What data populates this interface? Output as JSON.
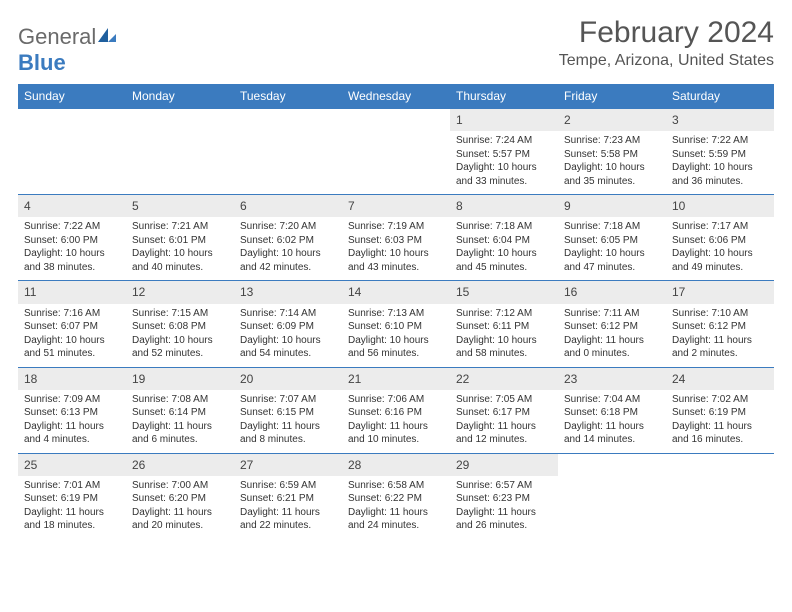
{
  "brand": {
    "word1": "General",
    "word2": "Blue"
  },
  "title": "February 2024",
  "location": "Tempe, Arizona, United States",
  "colors": {
    "accent": "#3b7bbf",
    "dayBg": "#ececec",
    "text": "#333333",
    "title": "#555555"
  },
  "dayHeaders": [
    "Sunday",
    "Monday",
    "Tuesday",
    "Wednesday",
    "Thursday",
    "Friday",
    "Saturday"
  ],
  "weeks": [
    [
      {
        "blank": true
      },
      {
        "blank": true
      },
      {
        "blank": true
      },
      {
        "blank": true
      },
      {
        "n": "1",
        "sr": "Sunrise: 7:24 AM",
        "ss": "Sunset: 5:57 PM",
        "dl": "Daylight: 10 hours and 33 minutes."
      },
      {
        "n": "2",
        "sr": "Sunrise: 7:23 AM",
        "ss": "Sunset: 5:58 PM",
        "dl": "Daylight: 10 hours and 35 minutes."
      },
      {
        "n": "3",
        "sr": "Sunrise: 7:22 AM",
        "ss": "Sunset: 5:59 PM",
        "dl": "Daylight: 10 hours and 36 minutes."
      }
    ],
    [
      {
        "n": "4",
        "sr": "Sunrise: 7:22 AM",
        "ss": "Sunset: 6:00 PM",
        "dl": "Daylight: 10 hours and 38 minutes."
      },
      {
        "n": "5",
        "sr": "Sunrise: 7:21 AM",
        "ss": "Sunset: 6:01 PM",
        "dl": "Daylight: 10 hours and 40 minutes."
      },
      {
        "n": "6",
        "sr": "Sunrise: 7:20 AM",
        "ss": "Sunset: 6:02 PM",
        "dl": "Daylight: 10 hours and 42 minutes."
      },
      {
        "n": "7",
        "sr": "Sunrise: 7:19 AM",
        "ss": "Sunset: 6:03 PM",
        "dl": "Daylight: 10 hours and 43 minutes."
      },
      {
        "n": "8",
        "sr": "Sunrise: 7:18 AM",
        "ss": "Sunset: 6:04 PM",
        "dl": "Daylight: 10 hours and 45 minutes."
      },
      {
        "n": "9",
        "sr": "Sunrise: 7:18 AM",
        "ss": "Sunset: 6:05 PM",
        "dl": "Daylight: 10 hours and 47 minutes."
      },
      {
        "n": "10",
        "sr": "Sunrise: 7:17 AM",
        "ss": "Sunset: 6:06 PM",
        "dl": "Daylight: 10 hours and 49 minutes."
      }
    ],
    [
      {
        "n": "11",
        "sr": "Sunrise: 7:16 AM",
        "ss": "Sunset: 6:07 PM",
        "dl": "Daylight: 10 hours and 51 minutes."
      },
      {
        "n": "12",
        "sr": "Sunrise: 7:15 AM",
        "ss": "Sunset: 6:08 PM",
        "dl": "Daylight: 10 hours and 52 minutes."
      },
      {
        "n": "13",
        "sr": "Sunrise: 7:14 AM",
        "ss": "Sunset: 6:09 PM",
        "dl": "Daylight: 10 hours and 54 minutes."
      },
      {
        "n": "14",
        "sr": "Sunrise: 7:13 AM",
        "ss": "Sunset: 6:10 PM",
        "dl": "Daylight: 10 hours and 56 minutes."
      },
      {
        "n": "15",
        "sr": "Sunrise: 7:12 AM",
        "ss": "Sunset: 6:11 PM",
        "dl": "Daylight: 10 hours and 58 minutes."
      },
      {
        "n": "16",
        "sr": "Sunrise: 7:11 AM",
        "ss": "Sunset: 6:12 PM",
        "dl": "Daylight: 11 hours and 0 minutes."
      },
      {
        "n": "17",
        "sr": "Sunrise: 7:10 AM",
        "ss": "Sunset: 6:12 PM",
        "dl": "Daylight: 11 hours and 2 minutes."
      }
    ],
    [
      {
        "n": "18",
        "sr": "Sunrise: 7:09 AM",
        "ss": "Sunset: 6:13 PM",
        "dl": "Daylight: 11 hours and 4 minutes."
      },
      {
        "n": "19",
        "sr": "Sunrise: 7:08 AM",
        "ss": "Sunset: 6:14 PM",
        "dl": "Daylight: 11 hours and 6 minutes."
      },
      {
        "n": "20",
        "sr": "Sunrise: 7:07 AM",
        "ss": "Sunset: 6:15 PM",
        "dl": "Daylight: 11 hours and 8 minutes."
      },
      {
        "n": "21",
        "sr": "Sunrise: 7:06 AM",
        "ss": "Sunset: 6:16 PM",
        "dl": "Daylight: 11 hours and 10 minutes."
      },
      {
        "n": "22",
        "sr": "Sunrise: 7:05 AM",
        "ss": "Sunset: 6:17 PM",
        "dl": "Daylight: 11 hours and 12 minutes."
      },
      {
        "n": "23",
        "sr": "Sunrise: 7:04 AM",
        "ss": "Sunset: 6:18 PM",
        "dl": "Daylight: 11 hours and 14 minutes."
      },
      {
        "n": "24",
        "sr": "Sunrise: 7:02 AM",
        "ss": "Sunset: 6:19 PM",
        "dl": "Daylight: 11 hours and 16 minutes."
      }
    ],
    [
      {
        "n": "25",
        "sr": "Sunrise: 7:01 AM",
        "ss": "Sunset: 6:19 PM",
        "dl": "Daylight: 11 hours and 18 minutes."
      },
      {
        "n": "26",
        "sr": "Sunrise: 7:00 AM",
        "ss": "Sunset: 6:20 PM",
        "dl": "Daylight: 11 hours and 20 minutes."
      },
      {
        "n": "27",
        "sr": "Sunrise: 6:59 AM",
        "ss": "Sunset: 6:21 PM",
        "dl": "Daylight: 11 hours and 22 minutes."
      },
      {
        "n": "28",
        "sr": "Sunrise: 6:58 AM",
        "ss": "Sunset: 6:22 PM",
        "dl": "Daylight: 11 hours and 24 minutes."
      },
      {
        "n": "29",
        "sr": "Sunrise: 6:57 AM",
        "ss": "Sunset: 6:23 PM",
        "dl": "Daylight: 11 hours and 26 minutes."
      },
      {
        "blank": true
      },
      {
        "blank": true
      }
    ]
  ]
}
